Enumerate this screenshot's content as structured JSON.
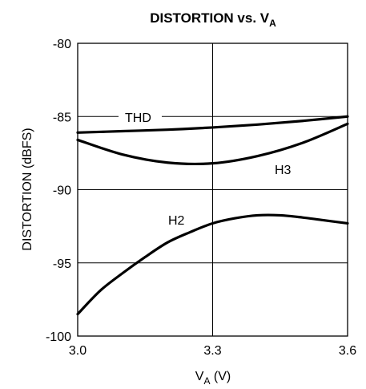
{
  "chart_data": {
    "type": "line",
    "title": {
      "main": "DISTORTION vs. V",
      "sub": "A"
    },
    "xlabel": {
      "main": "V",
      "sub": "A",
      "unit": " (V)"
    },
    "ylabel": "DISTORTION (dBFS)",
    "xlim": [
      3.0,
      3.6
    ],
    "ylim": [
      -100,
      -80
    ],
    "x_ticks": [
      3.0,
      3.3,
      3.6
    ],
    "x_tick_labels": [
      "3.0",
      "3.3",
      "3.6"
    ],
    "y_ticks": [
      -80,
      -85,
      -90,
      -95,
      -100
    ],
    "y_tick_labels": [
      "-80",
      "-85",
      "-90",
      "-95",
      "-100"
    ],
    "grid": true,
    "series": [
      {
        "name": "THD",
        "x": [
          3.0,
          3.1,
          3.2,
          3.3,
          3.4,
          3.5,
          3.6
        ],
        "y": [
          -86.1,
          -86.0,
          -85.9,
          -85.75,
          -85.55,
          -85.3,
          -85.0
        ]
      },
      {
        "name": "H3",
        "x": [
          3.0,
          3.1,
          3.2,
          3.3,
          3.4,
          3.5,
          3.6
        ],
        "y": [
          -86.6,
          -87.6,
          -88.15,
          -88.2,
          -87.7,
          -86.8,
          -85.5
        ]
      },
      {
        "name": "H2",
        "x": [
          3.0,
          3.05,
          3.1,
          3.15,
          3.2,
          3.25,
          3.3,
          3.35,
          3.4,
          3.45,
          3.5,
          3.55,
          3.6
        ],
        "y": [
          -98.5,
          -96.9,
          -95.7,
          -94.6,
          -93.6,
          -92.9,
          -92.3,
          -91.95,
          -91.75,
          -91.75,
          -91.9,
          -92.1,
          -92.3
        ]
      }
    ]
  }
}
